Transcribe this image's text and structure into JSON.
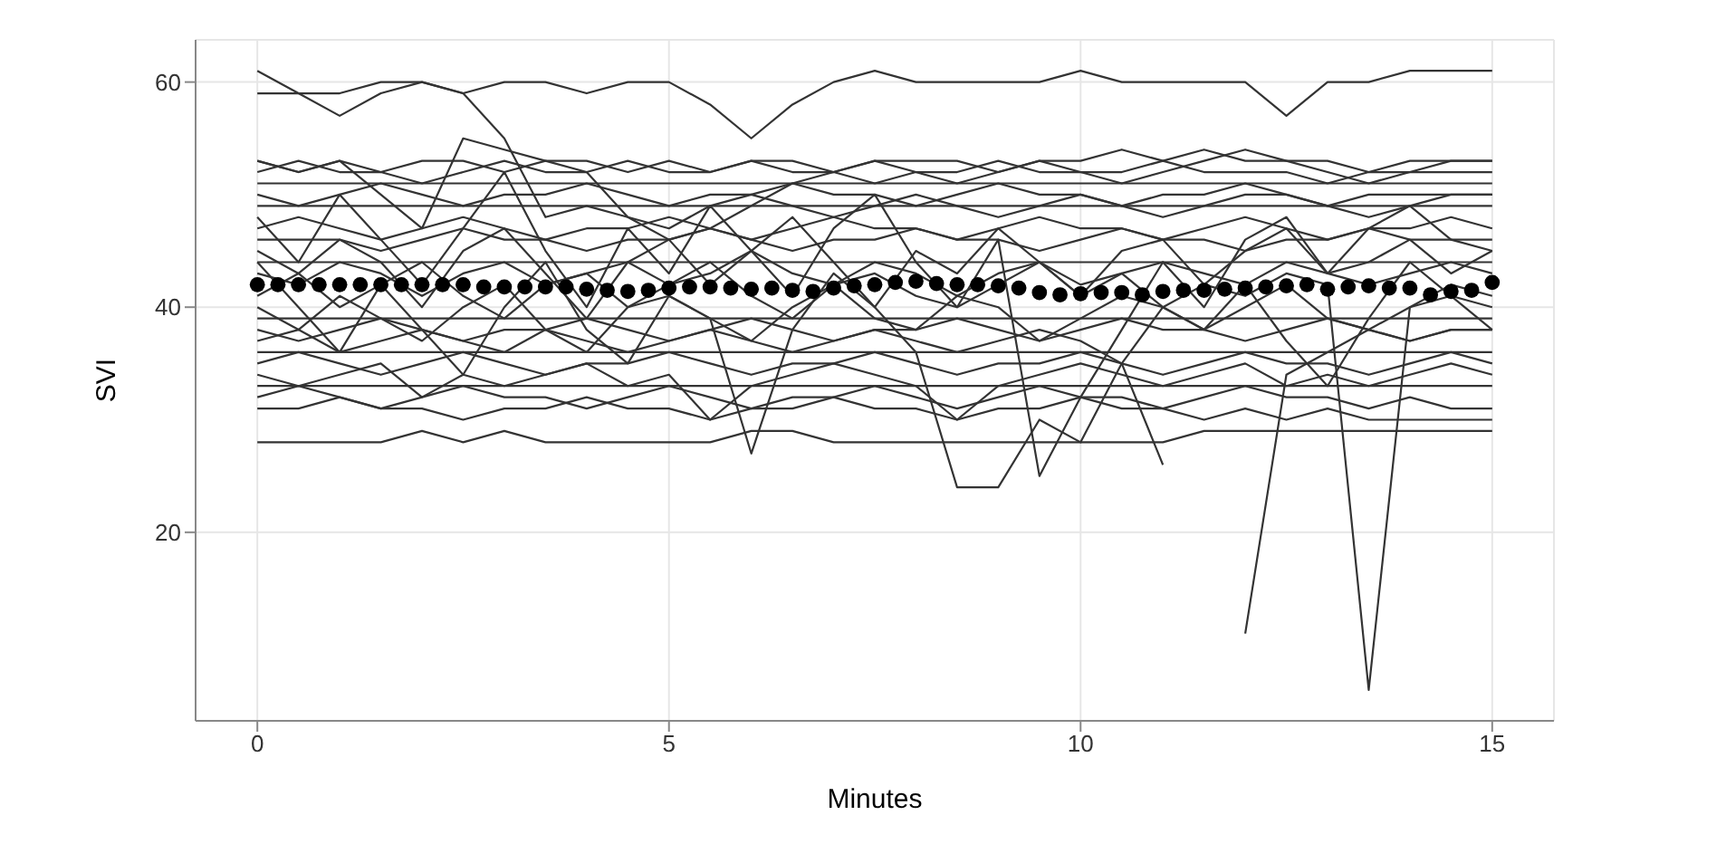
{
  "chart_data": {
    "type": "line",
    "xlabel": "Minutes",
    "ylabel": "SVI",
    "xlim": [
      -0.75,
      15.75
    ],
    "ylim": [
      3.25,
      63.75
    ],
    "xticks": [
      0,
      5,
      10,
      15
    ],
    "yticks": [
      20,
      40,
      60
    ],
    "grid": true,
    "line_style": "solid",
    "x": [
      0,
      0.5,
      1,
      1.5,
      2,
      2.5,
      3,
      3.5,
      4,
      4.5,
      5,
      5.5,
      6,
      6.5,
      7,
      7.5,
      8,
      8.5,
      9,
      9.5,
      10,
      10.5,
      11,
      11.5,
      12,
      12.5,
      13,
      13.5,
      14,
      14.5,
      15
    ],
    "series": [
      {
        "color": "#333333",
        "values": [
          61,
          59,
          57,
          59,
          60,
          59,
          60,
          60,
          59,
          60,
          60,
          58,
          55,
          58,
          60,
          61,
          60,
          60,
          60,
          60,
          61,
          60,
          60,
          60,
          60,
          57,
          60,
          60,
          61,
          61,
          61
        ]
      },
      {
        "color": "#333333",
        "values": [
          59,
          59,
          59,
          60,
          60,
          59,
          55,
          48,
          49,
          48,
          47,
          49,
          50,
          49,
          48,
          49,
          50,
          49,
          48,
          49,
          50,
          49,
          48,
          49,
          50,
          50,
          49,
          48,
          49,
          50,
          50
        ]
      },
      {
        "color": "#333333",
        "values": [
          53,
          52,
          53,
          52,
          53,
          53,
          52,
          53,
          53,
          52,
          53,
          52,
          53,
          53,
          52,
          53,
          53,
          53,
          52,
          53,
          53,
          54,
          53,
          54,
          53,
          53,
          53,
          52,
          53,
          53,
          53
        ]
      },
      {
        "color": "#333333",
        "values": [
          52,
          53,
          52,
          52,
          51,
          52,
          53,
          52,
          52,
          53,
          52,
          52,
          53,
          52,
          52,
          51,
          52,
          52,
          53,
          52,
          52,
          52,
          53,
          52,
          52,
          52,
          51,
          52,
          52,
          52,
          52
        ]
      },
      {
        "color": "#333333",
        "values": [
          51,
          51,
          51,
          51,
          51,
          51,
          51,
          51,
          51,
          51,
          51,
          51,
          51,
          51,
          51,
          51,
          51,
          51,
          51,
          51,
          51,
          51,
          51,
          51,
          51,
          51,
          51,
          51,
          51,
          51,
          51
        ]
      },
      {
        "color": "#333333",
        "values": [
          50,
          49,
          50,
          51,
          50,
          49,
          50,
          50,
          51,
          50,
          49,
          50,
          50,
          51,
          50,
          50,
          49,
          50,
          51,
          50,
          50,
          49,
          50,
          50,
          51,
          50,
          49,
          50,
          50,
          50,
          50
        ]
      },
      {
        "color": "#333333",
        "values": [
          49,
          49,
          49,
          49,
          49,
          49,
          49,
          49,
          49,
          49,
          49,
          49,
          49,
          49,
          49,
          49,
          49,
          49,
          49,
          49,
          49,
          49,
          49,
          49,
          49,
          49,
          49,
          49,
          49,
          49,
          49
        ]
      },
      {
        "color": "#333333",
        "values": [
          47,
          48,
          47,
          46,
          47,
          48,
          47,
          46,
          47,
          47,
          48,
          47,
          46,
          47,
          48,
          47,
          47,
          46,
          47,
          48,
          47,
          47,
          46,
          47,
          48,
          47,
          46,
          47,
          47,
          48,
          47
        ]
      },
      {
        "color": "#333333",
        "values": [
          46,
          46,
          46,
          45,
          46,
          47,
          46,
          46,
          45,
          46,
          46,
          47,
          46,
          45,
          46,
          46,
          47,
          46,
          46,
          45,
          46,
          47,
          46,
          46,
          45,
          46,
          46,
          47,
          46,
          46,
          46
        ]
      },
      {
        "color": "#333333",
        "values": [
          45,
          43,
          46,
          44,
          40,
          45,
          47,
          43,
          39,
          44,
          46,
          42,
          45,
          48,
          44,
          40,
          45,
          43,
          47,
          44,
          41,
          45,
          46,
          42,
          45,
          47,
          43,
          44,
          46,
          43,
          45
        ]
      },
      {
        "color": "#333333",
        "values": [
          44,
          44,
          44,
          44,
          44,
          44,
          44,
          44,
          44,
          44,
          44,
          44,
          44,
          44,
          44,
          44,
          44,
          44,
          44,
          44,
          44,
          44,
          44,
          44,
          44,
          44,
          44,
          44,
          44,
          44,
          44
        ]
      },
      {
        "color": "#333333",
        "values": [
          43,
          42,
          44,
          43,
          41,
          43,
          44,
          42,
          43,
          44,
          42,
          43,
          45,
          43,
          42,
          44,
          43,
          41,
          43,
          44,
          42,
          43,
          44,
          43,
          42,
          44,
          43,
          42,
          43,
          44,
          43
        ]
      },
      {
        "color": "#333333",
        "values": [
          39,
          39,
          39,
          39,
          39,
          39,
          39,
          39,
          39,
          39,
          39,
          39,
          39,
          39,
          39,
          39,
          39,
          39,
          39,
          39,
          39,
          39,
          39,
          39,
          39,
          39,
          39,
          39,
          39,
          39,
          39
        ]
      },
      {
        "color": "#333333",
        "values": [
          40,
          38,
          41,
          39,
          37,
          40,
          42,
          38,
          36,
          40,
          41,
          39,
          37,
          40,
          42,
          39,
          38,
          41,
          40,
          37,
          39,
          41,
          40,
          38,
          40,
          42,
          39,
          38,
          40,
          41,
          40
        ]
      },
      {
        "color": "#333333",
        "values": [
          38,
          37,
          38,
          39,
          38,
          37,
          38,
          38,
          39,
          38,
          37,
          38,
          39,
          38,
          37,
          38,
          38,
          39,
          38,
          37,
          38,
          39,
          38,
          38,
          37,
          38,
          39,
          38,
          37,
          38,
          38
        ]
      },
      {
        "color": "#333333",
        "values": [
          36,
          36,
          36,
          36,
          36,
          36,
          36,
          36,
          36,
          36,
          36,
          36,
          36,
          36,
          36,
          36,
          36,
          36,
          36,
          36,
          36,
          36,
          36,
          36,
          36,
          36,
          36,
          36,
          36,
          36,
          36
        ]
      },
      {
        "color": "#333333",
        "values": [
          35,
          36,
          35,
          34,
          35,
          36,
          35,
          34,
          35,
          35,
          36,
          35,
          34,
          35,
          35,
          36,
          35,
          34,
          35,
          35,
          36,
          35,
          34,
          35,
          36,
          35,
          35,
          34,
          35,
          36,
          35
        ]
      },
      {
        "color": "#333333",
        "values": [
          34,
          33,
          34,
          35,
          32,
          34,
          33,
          34,
          35,
          33,
          34,
          30,
          33,
          34,
          35,
          34,
          33,
          30,
          33,
          34,
          35,
          34,
          33,
          34,
          35,
          33,
          34,
          33,
          34,
          35,
          34
        ]
      },
      {
        "color": "#333333",
        "values": [
          33,
          33,
          33,
          33,
          33,
          33,
          33,
          33,
          33,
          33,
          33,
          33,
          33,
          33,
          33,
          33,
          33,
          33,
          33,
          33,
          33,
          33,
          33,
          33,
          33,
          33,
          33,
          33,
          33,
          33,
          33
        ]
      },
      {
        "color": "#333333",
        "values": [
          32,
          33,
          32,
          31,
          32,
          33,
          32,
          32,
          31,
          32,
          33,
          32,
          31,
          32,
          32,
          33,
          32,
          31,
          32,
          33,
          32,
          32,
          31,
          32,
          33,
          32,
          32,
          31,
          32,
          31,
          31
        ]
      },
      {
        "color": "#333333",
        "values": [
          31,
          31,
          32,
          31,
          31,
          30,
          31,
          31,
          32,
          31,
          31,
          30,
          31,
          31,
          32,
          31,
          31,
          30,
          31,
          31,
          32,
          31,
          31,
          30,
          31,
          30,
          31,
          30,
          30,
          30,
          30
        ]
      },
      {
        "color": "#333333",
        "values": [
          28,
          28,
          28,
          28,
          29,
          28,
          29,
          28,
          28,
          28,
          28,
          28,
          29,
          29,
          28,
          28,
          28,
          28,
          28,
          28,
          28,
          28,
          28,
          29,
          29,
          29,
          29,
          29,
          29,
          29,
          29
        ]
      },
      {
        "color": "#333333",
        "values": [
          44,
          40,
          36,
          42,
          38,
          34,
          40,
          44,
          38,
          35,
          41,
          39,
          27,
          38,
          43,
          40,
          36,
          24,
          24,
          30,
          28,
          35,
          40,
          38,
          42,
          37,
          33,
          39,
          44,
          41,
          38
        ]
      },
      {
        "color": "#333333",
        "values": [
          48,
          44,
          50,
          46,
          42,
          47,
          52,
          45,
          40,
          47,
          43,
          49,
          45,
          41,
          47,
          50,
          44,
          40,
          46,
          25,
          32,
          38,
          44,
          40,
          46,
          48,
          43,
          47,
          49,
          46,
          45
        ]
      },
      {
        "color": "#333333",
        "values": [
          37,
          38,
          36,
          37,
          38,
          37,
          36,
          38,
          37,
          36,
          37,
          38,
          37,
          36,
          37,
          38,
          37,
          36,
          37,
          38,
          37,
          35,
          26,
          null,
          11,
          34,
          36,
          38,
          37,
          38,
          38
        ]
      },
      {
        "color": "#333333",
        "values": [
          41,
          43,
          40,
          42,
          44,
          41,
          39,
          42,
          43,
          40,
          42,
          44,
          41,
          39,
          42,
          43,
          41,
          40,
          42,
          44,
          41,
          43,
          40,
          42,
          41,
          43,
          42,
          6,
          40,
          42,
          41
        ]
      },
      {
        "color": "#333333",
        "values": [
          53,
          52,
          53,
          50,
          47,
          55,
          54,
          53,
          52,
          48,
          46,
          47,
          49,
          51,
          52,
          53,
          52,
          51,
          52,
          53,
          52,
          51,
          52,
          53,
          54,
          53,
          52,
          51,
          52,
          53,
          53
        ]
      },
      {
        "type": "scatter",
        "color": "#000000",
        "marker": "circle",
        "x": [
          0,
          0.25,
          0.5,
          0.75,
          1,
          1.25,
          1.5,
          1.75,
          2,
          2.25,
          2.5,
          2.75,
          3,
          3.25,
          3.5,
          3.75,
          4,
          4.25,
          4.5,
          4.75,
          5,
          5.25,
          5.5,
          5.75,
          6,
          6.25,
          6.5,
          6.75,
          7,
          7.25,
          7.5,
          7.75,
          8,
          8.25,
          8.5,
          8.75,
          9,
          9.25,
          9.5,
          9.75,
          10,
          10.25,
          10.5,
          10.75,
          11,
          11.25,
          11.5,
          11.75,
          12,
          12.25,
          12.5,
          12.75,
          13,
          13.25,
          13.5,
          13.75,
          14,
          14.25,
          14.5,
          14.75,
          15
        ],
        "values": [
          42,
          42,
          42,
          42,
          42,
          42,
          42,
          42,
          42,
          42,
          42,
          41.8,
          41.8,
          41.8,
          41.8,
          41.8,
          41.6,
          41.5,
          41.4,
          41.5,
          41.7,
          41.8,
          41.8,
          41.7,
          41.6,
          41.7,
          41.5,
          41.4,
          41.7,
          41.9,
          42,
          42.2,
          42.3,
          42.1,
          42,
          42,
          41.9,
          41.7,
          41.3,
          41.1,
          41.2,
          41.3,
          41.3,
          41.1,
          41.4,
          41.5,
          41.5,
          41.6,
          41.7,
          41.8,
          41.9,
          42,
          41.6,
          41.8,
          41.9,
          41.7,
          41.7,
          41.1,
          41.4,
          41.5,
          42.2
        ]
      }
    ]
  }
}
